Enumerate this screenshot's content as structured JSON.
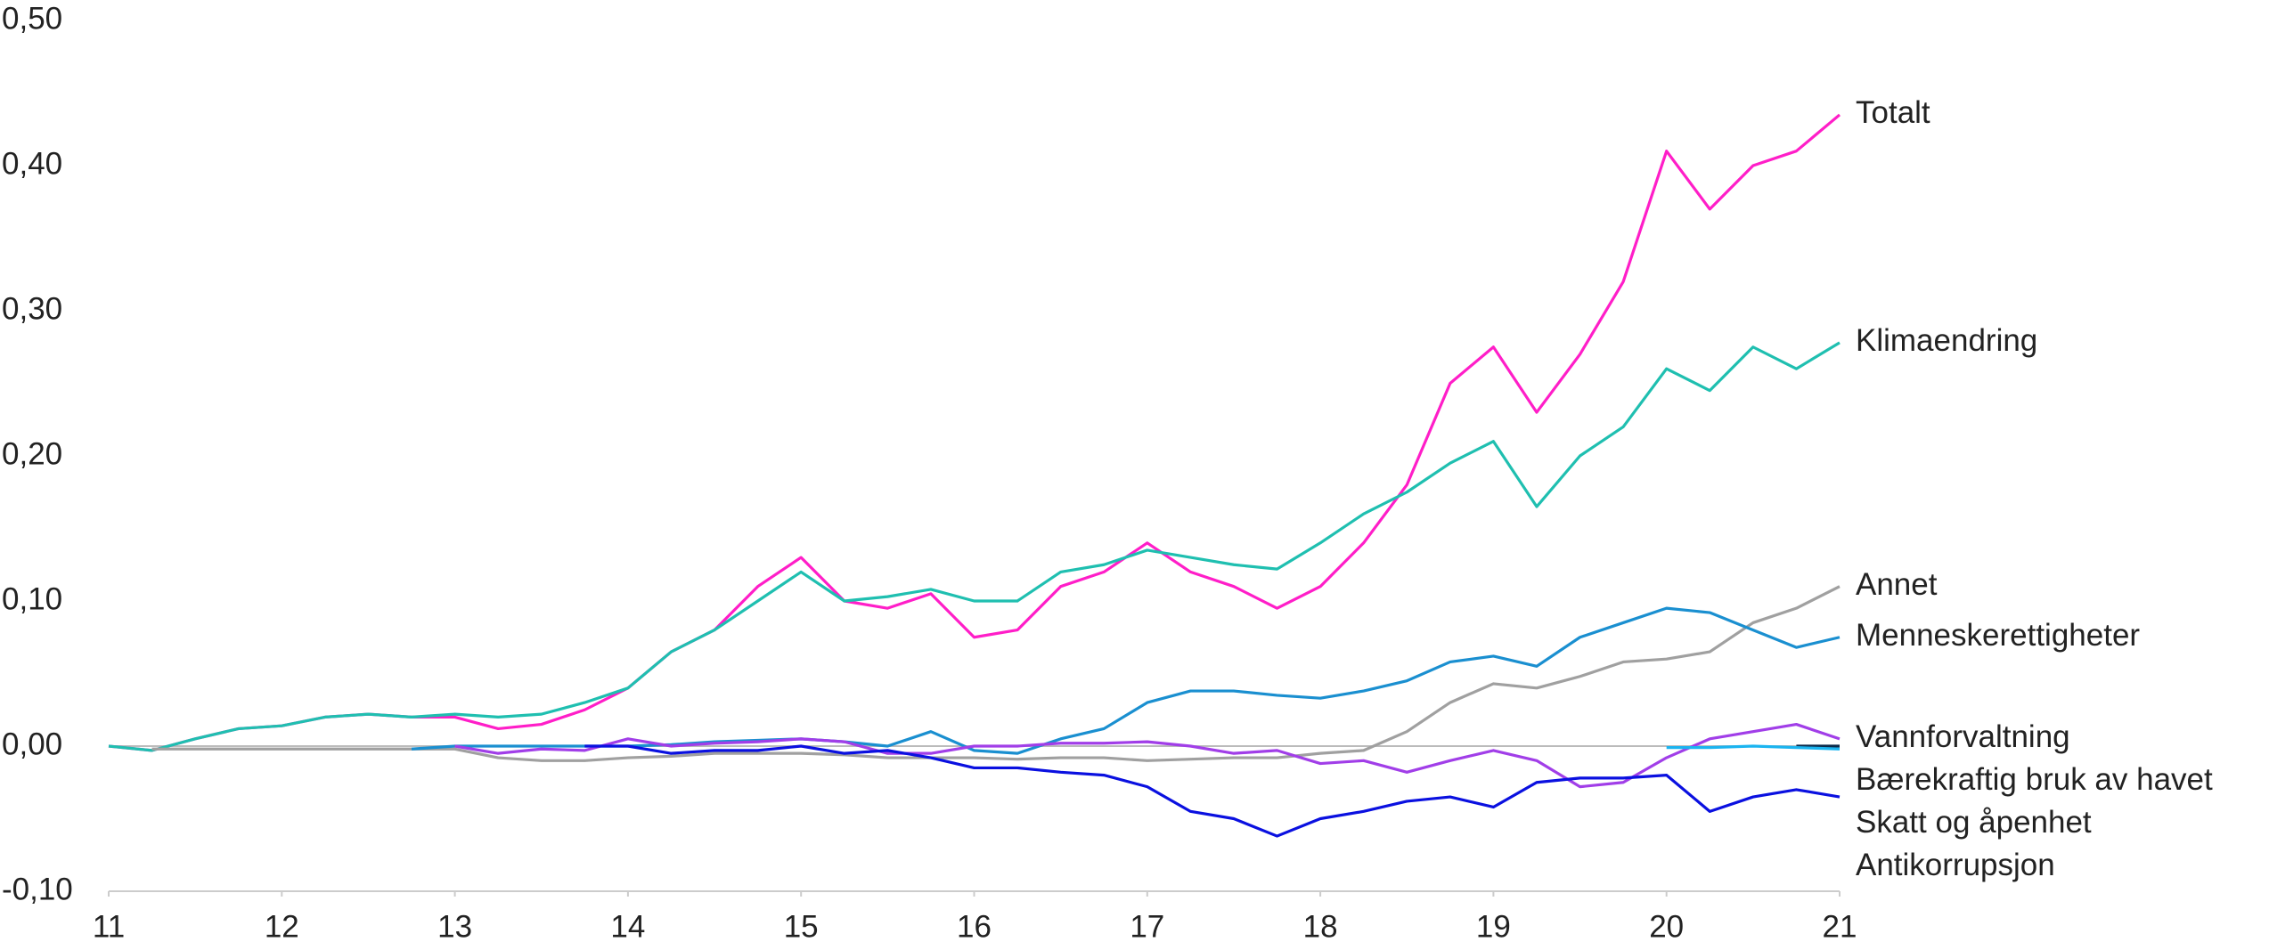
{
  "chart_data": {
    "type": "line",
    "x": [
      11,
      11.25,
      11.5,
      11.75,
      12,
      12.25,
      12.5,
      12.75,
      13,
      13.25,
      13.5,
      13.75,
      14,
      14.25,
      14.5,
      14.75,
      15,
      15.25,
      15.5,
      15.75,
      16,
      16.25,
      16.5,
      16.75,
      17,
      17.25,
      17.5,
      17.75,
      18,
      18.25,
      18.5,
      18.75,
      19,
      19.25,
      19.5,
      19.75,
      20,
      20.25,
      20.5,
      20.75,
      21
    ],
    "xlim": [
      11,
      21
    ],
    "xticks": [
      11,
      12,
      13,
      14,
      15,
      16,
      17,
      18,
      19,
      20,
      21
    ],
    "ylim": [
      -0.1,
      0.5
    ],
    "yticks": [
      {
        "value": -0.1,
        "label": "-0,10"
      },
      {
        "value": 0,
        "label": "0,00"
      },
      {
        "value": 0.1,
        "label": "0,10"
      },
      {
        "value": 0.2,
        "label": "0,20"
      },
      {
        "value": 0.3,
        "label": "0,30"
      },
      {
        "value": 0.4,
        "label": "0,40"
      },
      {
        "value": 0.5,
        "label": "0,50"
      }
    ],
    "grid": false,
    "series": [
      {
        "name": "Totalt",
        "color": "#ff1ec8",
        "values": [
          0,
          -0.003,
          0.005,
          0.012,
          0.014,
          0.02,
          0.022,
          0.02,
          0.02,
          0.012,
          0.015,
          0.025,
          0.04,
          0.065,
          0.08,
          0.11,
          0.13,
          0.1,
          0.095,
          0.105,
          0.075,
          0.08,
          0.11,
          0.12,
          0.14,
          0.12,
          0.11,
          0.095,
          0.11,
          0.14,
          0.18,
          0.25,
          0.275,
          0.23,
          0.27,
          0.32,
          0.41,
          0.37,
          0.4,
          0.41,
          0.435
        ]
      },
      {
        "name": "Klimaendring",
        "color": "#1fbfb0",
        "values": [
          0,
          -0.003,
          0.005,
          0.012,
          0.014,
          0.02,
          0.022,
          0.02,
          0.022,
          0.02,
          0.022,
          0.03,
          0.04,
          0.065,
          0.08,
          0.1,
          0.12,
          0.1,
          0.103,
          0.108,
          0.1,
          0.1,
          0.12,
          0.125,
          0.135,
          0.13,
          0.125,
          0.122,
          0.14,
          0.16,
          0.175,
          0.195,
          0.21,
          0.165,
          0.2,
          0.22,
          0.26,
          0.245,
          0.275,
          0.26,
          0.278
        ]
      },
      {
        "name": "Annet",
        "color": "#a0a0a0",
        "values": [
          null,
          -0.002,
          -0.002,
          -0.002,
          -0.002,
          -0.002,
          -0.002,
          -0.002,
          -0.002,
          -0.008,
          -0.01,
          -0.01,
          -0.008,
          -0.007,
          -0.005,
          -0.005,
          -0.005,
          -0.006,
          -0.008,
          -0.008,
          -0.008,
          -0.009,
          -0.008,
          -0.008,
          -0.01,
          -0.009,
          -0.008,
          -0.008,
          -0.005,
          -0.003,
          0.01,
          0.03,
          0.043,
          0.04,
          0.048,
          0.058,
          0.06,
          0.065,
          0.085,
          0.095,
          0.11
        ]
      },
      {
        "name": "Menneskerettigheter",
        "color": "#1a8fd0",
        "values": [
          null,
          null,
          null,
          null,
          null,
          null,
          null,
          -0.002,
          0,
          0,
          0,
          0,
          0,
          0.001,
          0.003,
          0.004,
          0.005,
          0.003,
          0,
          0.01,
          -0.003,
          -0.005,
          0.005,
          0.012,
          0.03,
          0.038,
          0.038,
          0.035,
          0.033,
          0.038,
          0.045,
          0.058,
          0.062,
          0.055,
          0.075,
          0.085,
          0.095,
          0.092,
          0.08,
          0.068,
          0.075
        ]
      },
      {
        "name": "Vannforvaltning",
        "color": "#a13ee8",
        "values": [
          null,
          null,
          null,
          null,
          null,
          null,
          null,
          null,
          0,
          -0.005,
          -0.002,
          -0.003,
          0.005,
          0,
          0.002,
          0.003,
          0.005,
          0.003,
          -0.005,
          -0.005,
          0,
          0,
          0.002,
          0.002,
          0.003,
          0,
          -0.005,
          -0.003,
          -0.012,
          -0.01,
          -0.018,
          -0.01,
          -0.003,
          -0.01,
          -0.028,
          -0.025,
          -0.008,
          0.005,
          0.01,
          0.015,
          0.005
        ]
      },
      {
        "name": "Bærekraftig bruk av havet",
        "color": "#0b2a4a",
        "values": [
          null,
          null,
          null,
          null,
          null,
          null,
          null,
          null,
          null,
          null,
          null,
          null,
          null,
          null,
          null,
          null,
          null,
          null,
          null,
          null,
          null,
          null,
          null,
          null,
          null,
          null,
          null,
          null,
          null,
          null,
          null,
          null,
          null,
          null,
          null,
          null,
          null,
          null,
          null,
          0,
          0
        ]
      },
      {
        "name": "Skatt og åpenhet",
        "color": "#1ab4f0",
        "values": [
          null,
          null,
          null,
          null,
          null,
          null,
          null,
          null,
          null,
          null,
          null,
          null,
          null,
          null,
          null,
          null,
          null,
          null,
          null,
          null,
          null,
          null,
          null,
          null,
          null,
          null,
          null,
          null,
          null,
          null,
          null,
          null,
          null,
          null,
          null,
          null,
          -0.001,
          -0.001,
          0,
          -0.001,
          -0.002
        ]
      },
      {
        "name": "Antikorrupsjon",
        "color": "#0a10e0",
        "values": [
          null,
          null,
          null,
          null,
          null,
          null,
          null,
          null,
          null,
          null,
          null,
          0,
          0,
          -0.005,
          -0.003,
          -0.003,
          0,
          -0.005,
          -0.003,
          -0.008,
          -0.015,
          -0.015,
          -0.018,
          -0.02,
          -0.028,
          -0.045,
          -0.05,
          -0.062,
          -0.05,
          -0.045,
          -0.038,
          -0.035,
          -0.042,
          -0.025,
          -0.022,
          -0.022,
          -0.02,
          -0.045,
          -0.035,
          -0.03,
          -0.035
        ]
      }
    ]
  }
}
